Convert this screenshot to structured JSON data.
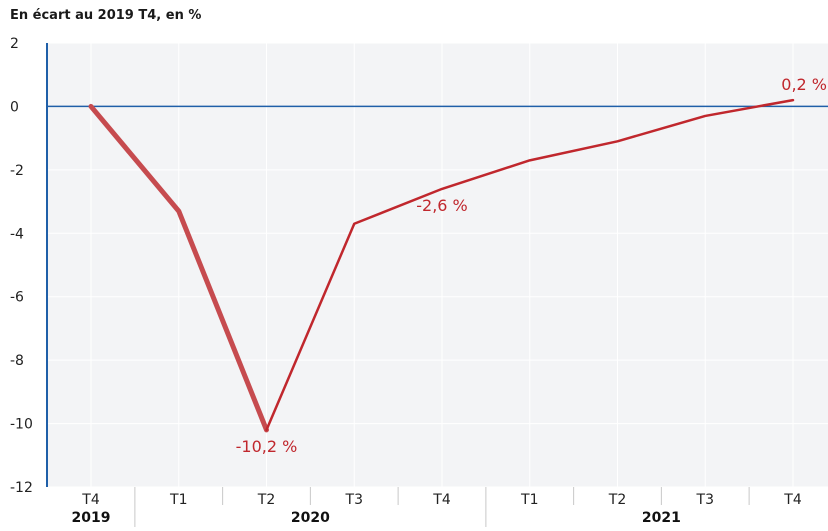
{
  "chart_data": {
    "type": "line",
    "title": "En écart au 2019 T4, en %",
    "categories": [
      "T4",
      "T1",
      "T2",
      "T3",
      "T4",
      "T1",
      "T2",
      "T3",
      "T4"
    ],
    "year_groups": [
      {
        "label": "2019",
        "start": 0,
        "end": 0
      },
      {
        "label": "2020",
        "start": 1,
        "end": 4
      },
      {
        "label": "2021",
        "start": 5,
        "end": 8
      }
    ],
    "series": [
      {
        "values": [
          0.0,
          -3.3,
          -10.2,
          -3.7,
          -2.6,
          -1.7,
          -1.1,
          -0.3,
          0.2
        ],
        "color": "#c0272d",
        "thick_until_index": 2
      }
    ],
    "ylim": [
      -12,
      2
    ],
    "yticks": [
      2,
      0,
      -2,
      -4,
      -6,
      -8,
      -10,
      -12
    ],
    "ytick_labels": [
      "2",
      "0",
      "-2",
      "-4",
      "-6",
      "-8",
      "-10",
      "-12"
    ],
    "zero_line_color": "#1f5fa8",
    "grid": true,
    "data_labels": [
      {
        "index": 2,
        "text": "-10,2 %",
        "position": "below"
      },
      {
        "index": 4,
        "text": "-2,6 %",
        "position": "below"
      },
      {
        "index": 8,
        "text": "0,2 %",
        "position": "above"
      }
    ]
  }
}
